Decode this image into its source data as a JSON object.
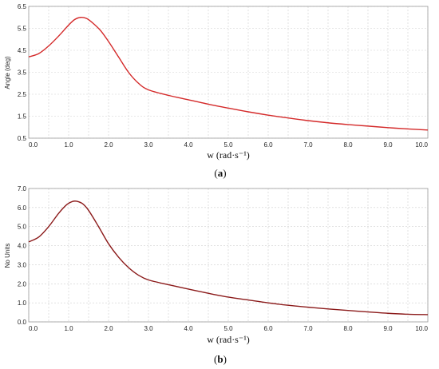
{
  "chart_data": [
    {
      "type": "line",
      "panel_label": "(a)",
      "xlabel": "w (rad·s⁻¹)",
      "ylabel": "Angle (deg)",
      "xlim": [
        0,
        10
      ],
      "ylim": [
        0.5,
        6.5
      ],
      "xticks": [
        "0.0",
        "1.0",
        "2.0",
        "3.0",
        "4.0",
        "5.0",
        "6.0",
        "7.0",
        "8.0",
        "9.0",
        "10.0"
      ],
      "yticks": [
        "0.5",
        "1.5",
        "2.5",
        "3.5",
        "4.5",
        "5.5",
        "6.5"
      ],
      "grid": true,
      "series": [
        {
          "color": "#d42a2a",
          "x": [
            0,
            0.25,
            0.5,
            0.75,
            1.0,
            1.15,
            1.3,
            1.45,
            1.6,
            1.8,
            2.0,
            2.25,
            2.5,
            2.75,
            3.0,
            3.5,
            4.0,
            4.5,
            5.0,
            5.5,
            6.0,
            6.5,
            7.0,
            7.5,
            8.0,
            8.5,
            9.0,
            9.5,
            10.0
          ],
          "y": [
            4.2,
            4.35,
            4.7,
            5.15,
            5.65,
            5.9,
            6.0,
            5.95,
            5.75,
            5.4,
            4.9,
            4.2,
            3.5,
            3.0,
            2.7,
            2.45,
            2.25,
            2.05,
            1.87,
            1.7,
            1.55,
            1.42,
            1.3,
            1.2,
            1.12,
            1.05,
            0.98,
            0.92,
            0.87
          ]
        }
      ]
    },
    {
      "type": "line",
      "panel_label": "(b)",
      "xlabel": "w (rad·s⁻¹)",
      "ylabel": "No Units",
      "xlim": [
        0,
        10
      ],
      "ylim": [
        0,
        7
      ],
      "xticks": [
        "0.0",
        "1.0",
        "2.0",
        "3.0",
        "4.0",
        "5.0",
        "6.0",
        "7.0",
        "8.0",
        "9.0",
        "10.0"
      ],
      "yticks": [
        "0.0",
        "1.0",
        "2.0",
        "3.0",
        "4.0",
        "5.0",
        "6.0",
        "7.0"
      ],
      "grid": true,
      "series": [
        {
          "color": "#8b1a1a",
          "x": [
            0,
            0.25,
            0.5,
            0.75,
            0.95,
            1.1,
            1.2,
            1.35,
            1.5,
            1.75,
            2.0,
            2.25,
            2.5,
            2.75,
            3.0,
            3.5,
            4.0,
            4.5,
            5.0,
            5.5,
            6.0,
            6.5,
            7.0,
            7.5,
            8.0,
            8.5,
            9.0,
            9.5,
            10.0
          ],
          "y": [
            4.2,
            4.45,
            5.0,
            5.7,
            6.15,
            6.32,
            6.33,
            6.2,
            5.85,
            5.0,
            4.1,
            3.4,
            2.85,
            2.45,
            2.2,
            1.95,
            1.72,
            1.5,
            1.3,
            1.15,
            1.0,
            0.87,
            0.77,
            0.68,
            0.6,
            0.52,
            0.45,
            0.4,
            0.38
          ]
        }
      ]
    }
  ]
}
